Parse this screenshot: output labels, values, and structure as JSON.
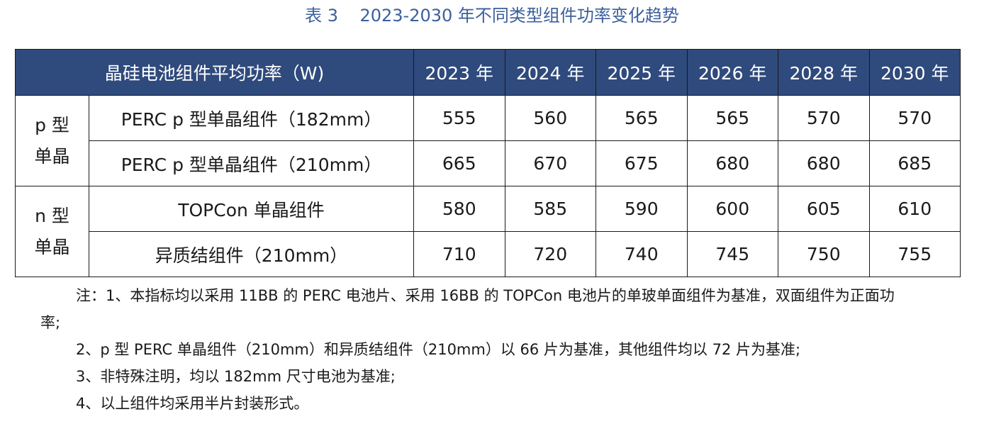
{
  "caption": "表 3    2023-2030 年不同类型组件功率变化趋势",
  "table": {
    "header": {
      "label": "晶硅电池组件平均功率（W)",
      "years": [
        "2023 年",
        "2024 年",
        "2025 年",
        "2026 年",
        "2028 年",
        "2030 年"
      ]
    },
    "groups": [
      {
        "name_line1": "p 型",
        "name_line2": "单晶",
        "rows": [
          {
            "name": "PERC p 型单晶组件（182mm）",
            "values": [
              "555",
              "560",
              "565",
              "565",
              "570",
              "570"
            ]
          },
          {
            "name": "PERC p 型单晶组件（210mm）",
            "values": [
              "665",
              "670",
              "675",
              "680",
              "680",
              "685"
            ]
          }
        ]
      },
      {
        "name_line1": "n 型",
        "name_line2": "单晶",
        "rows": [
          {
            "name": "TOPCon 单晶组件",
            "values": [
              "580",
              "585",
              "590",
              "600",
              "605",
              "610"
            ]
          },
          {
            "name": "异质结组件（210mm）",
            "values": [
              "710",
              "720",
              "740",
              "745",
              "750",
              "755"
            ]
          }
        ]
      }
    ]
  },
  "notes": {
    "note1_line1": "注：1、本指标均以采用 11BB 的 PERC 电池片、采用 16BB 的 TOPCon 电池片的单玻单面组件为基准，双面组件为正面功",
    "note1_line2": "率;",
    "note2": "2、p 型 PERC 单晶组件（210mm）和异质结组件（210mm）以 66 片为基准，其他组件均以 72 片为基准;",
    "note3": "3、非特殊注明，均以 182mm 尺寸电池为基准;",
    "note4": "4、以上组件均采用半片封装形式。"
  }
}
